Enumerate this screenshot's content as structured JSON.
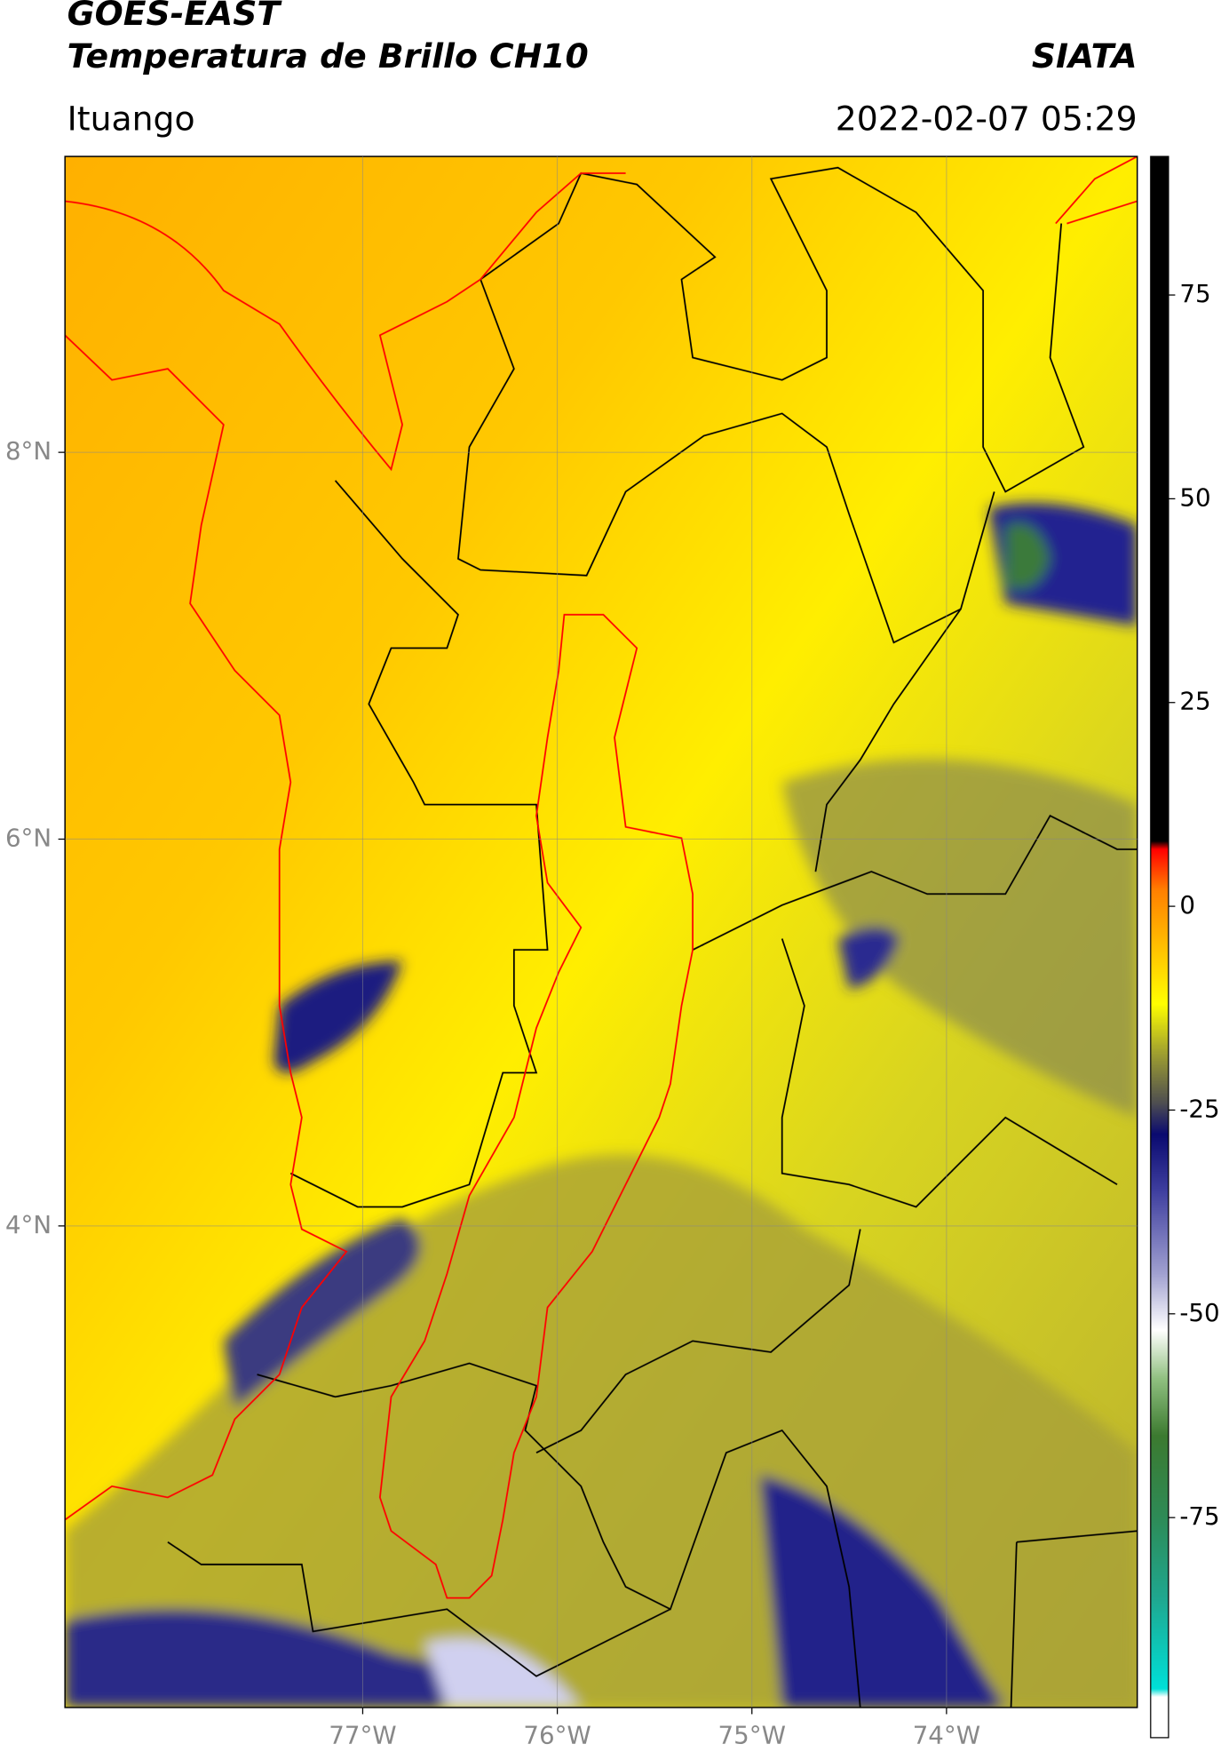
{
  "header": {
    "title": "GOES-EAST",
    "subtitle": "Temperatura de Brillo CH10",
    "source": "SIATA",
    "location": "Ituango",
    "datetime": "2022-02-07 05:29"
  },
  "map": {
    "xlim": [
      -78.53,
      -73.02
    ],
    "ylim": [
      1.51,
      9.53
    ],
    "xticks": [
      {
        "value": -77,
        "label": "77°W"
      },
      {
        "value": -76,
        "label": "76°W"
      },
      {
        "value": -75,
        "label": "75°W"
      },
      {
        "value": -74,
        "label": "74°W"
      }
    ],
    "yticks": [
      {
        "value": 4,
        "label": "4°N"
      },
      {
        "value": 6,
        "label": "6°N"
      },
      {
        "value": 8,
        "label": "8°N"
      }
    ],
    "grid": true,
    "colorbar": {
      "ylim": [
        -102,
        92
      ],
      "yticks": [
        -75,
        -50,
        -25,
        0,
        25,
        50,
        75
      ],
      "stops": [
        [
          -102,
          "#ffffff"
        ],
        [
          -97,
          "#ffffff"
        ],
        [
          -96,
          "#00e0d8"
        ],
        [
          -85,
          "#1fa890"
        ],
        [
          -75,
          "#2e8b57"
        ],
        [
          -65,
          "#3c7a30"
        ],
        [
          -58,
          "#90c080"
        ],
        [
          -52,
          "#ffffff"
        ],
        [
          -45,
          "#a0a0d0"
        ],
        [
          -35,
          "#4040a0"
        ],
        [
          -28,
          "#0a0a70"
        ],
        [
          -24,
          "#505050"
        ],
        [
          -18,
          "#a0a030"
        ],
        [
          -12,
          "#ffff00"
        ],
        [
          -5,
          "#ffc000"
        ],
        [
          2,
          "#ff8000"
        ],
        [
          7,
          "#ff0000"
        ],
        [
          8,
          "#000000"
        ],
        [
          92,
          "#000000"
        ]
      ]
    }
  }
}
